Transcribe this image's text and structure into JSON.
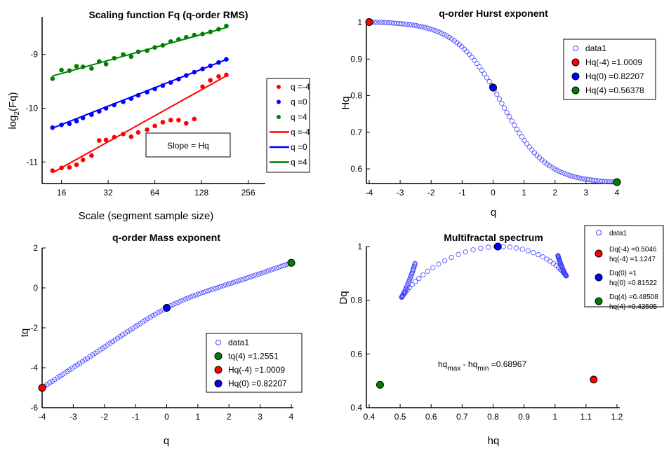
{
  "chart_data": [
    {
      "type": "scatter",
      "title": "Scaling function Fq (q-order RMS)",
      "xlabel": "Scale (segment sample size)",
      "ylabel_main": "log",
      "ylabel_sub": "2",
      "ylabel_tail": "(Fq)",
      "xscale": "log2",
      "xlim": [
        12,
        330
      ],
      "ylim": [
        -11.4,
        -8.3
      ],
      "xticks": [
        16,
        32,
        64,
        128,
        256
      ],
      "xtick_labels": [
        "16",
        "32",
        "64",
        "128",
        "256"
      ],
      "yticks": [
        -11,
        -10,
        -9
      ],
      "ytick_labels": [
        "-11",
        "-10",
        "-9"
      ],
      "annotation": "Slope = Hq",
      "legend_position": "right",
      "colors": {
        "red": "#ff0000",
        "blue": "#0000ff",
        "green": "#008000"
      },
      "x": [
        14,
        16,
        18,
        20,
        22,
        25,
        28,
        31,
        35,
        40,
        45,
        50,
        57,
        64,
        72,
        81,
        91,
        102,
        115,
        130,
        146,
        165,
        185
      ],
      "series": [
        {
          "name": "q =-4",
          "color": "#ff0000",
          "y": [
            -11.16,
            -11.11,
            -11.1,
            -11.05,
            -10.96,
            -10.88,
            -10.6,
            -10.59,
            -10.54,
            -10.48,
            -10.53,
            -10.45,
            -10.4,
            -10.33,
            -10.26,
            -10.22,
            -10.22,
            -10.28,
            -10.2,
            -9.6,
            -9.48,
            -9.41,
            -9.38
          ]
        },
        {
          "name": "q =0",
          "color": "#0000ff",
          "y": [
            -10.36,
            -10.31,
            -10.29,
            -10.24,
            -10.18,
            -10.12,
            -10.06,
            -10.0,
            -9.94,
            -9.88,
            -9.82,
            -9.76,
            -9.7,
            -9.64,
            -9.58,
            -9.52,
            -9.46,
            -9.39,
            -9.33,
            -9.27,
            -9.21,
            -9.15,
            -9.09
          ]
        },
        {
          "name": "q =4",
          "color": "#008000",
          "y": [
            -9.45,
            -9.29,
            -9.3,
            -9.22,
            -9.23,
            -9.26,
            -9.13,
            -9.18,
            -9.07,
            -9.0,
            -9.04,
            -8.95,
            -8.93,
            -8.87,
            -8.83,
            -8.76,
            -8.72,
            -8.68,
            -8.64,
            -8.62,
            -8.58,
            -8.53,
            -8.47
          ]
        }
      ],
      "fit_lines": [
        {
          "name": "q =-4",
          "color": "#ff0000",
          "x": [
            14,
            190
          ],
          "y": [
            -11.2,
            -9.38
          ]
        },
        {
          "name": "q =0",
          "color": "#0000ff",
          "x": [
            14,
            190
          ],
          "y": [
            -10.37,
            -9.08
          ]
        },
        {
          "name": "q =4",
          "color": "#008000",
          "x": [
            14,
            190
          ],
          "y": [
            -9.4,
            -8.49
          ]
        }
      ]
    },
    {
      "type": "scatter",
      "title": "q-order Hurst exponent",
      "xlabel": "q",
      "ylabel": "Hq",
      "xlim": [
        -4,
        4
      ],
      "ylim": [
        0.56,
        1.0
      ],
      "xticks": [
        -4,
        -3,
        -2,
        -1,
        0,
        1,
        2,
        3,
        4
      ],
      "xtick_labels": [
        "-4",
        "-3",
        "-2",
        "-1",
        "0",
        "1",
        "2",
        "3",
        "4"
      ],
      "yticks": [
        0.6,
        0.7,
        0.8,
        0.9,
        1.0
      ],
      "ytick_labels": [
        "0.6",
        "0.7",
        "0.8",
        "0.9",
        "1"
      ],
      "legend_position": "top-right",
      "series": [
        {
          "name": "data1",
          "style": "open-circle",
          "color": "#4040ff",
          "q_range": [
            -4,
            4
          ],
          "n": 100,
          "model": {
            "h_min": 0.565,
            "h_max": 1.0009,
            "center": 0.2,
            "width": 0.75,
            "slope_lin": 0.0
          }
        },
        {
          "name": "Hq(-4) =1.0009",
          "color": "#ff0000",
          "x": [
            -4
          ],
          "y": [
            1.0009
          ]
        },
        {
          "name": "Hq(0) =0.82207",
          "color": "#0000ff",
          "x": [
            0
          ],
          "y": [
            0.82207
          ]
        },
        {
          "name": "Hq(4) =0.56378",
          "color": "#008000",
          "x": [
            4
          ],
          "y": [
            0.56378
          ]
        }
      ]
    },
    {
      "type": "scatter",
      "title": "q-order Mass exponent",
      "xlabel": "q",
      "ylabel": "tq",
      "xlim": [
        -4,
        4
      ],
      "ylim": [
        -6,
        2
      ],
      "xticks": [
        -4,
        -3,
        -2,
        -1,
        0,
        1,
        2,
        3,
        4
      ],
      "xtick_labels": [
        "-4",
        "-3",
        "-2",
        "-1",
        "0",
        "1",
        "2",
        "3",
        "4"
      ],
      "yticks": [
        -6,
        -4,
        -2,
        0,
        2
      ],
      "ytick_labels": [
        "-6",
        "-4",
        "-2",
        "0",
        "2"
      ],
      "legend_position": "bottom-right",
      "series": [
        {
          "name": "data1",
          "style": "open-circle",
          "color": "#4040ff",
          "q_range": [
            -4,
            4
          ],
          "n": 100
        },
        {
          "name": "tq(4) =1.2551",
          "color": "#008000",
          "x": [
            4
          ],
          "y": [
            1.2551
          ]
        },
        {
          "name": "Hq(-4) =1.0009",
          "color": "#ff0000",
          "x": [
            -4
          ],
          "y": [
            -5.0036
          ]
        },
        {
          "name": "Hq(0) =0.82207",
          "color": "#0000ff",
          "x": [
            0
          ],
          "y": [
            -1.0
          ]
        }
      ]
    },
    {
      "type": "scatter",
      "title": "Multifractal spectrum",
      "xlabel": "hq",
      "ylabel": "Dq",
      "xlim": [
        0.4,
        1.2
      ],
      "ylim": [
        0.4,
        1.0
      ],
      "xticks": [
        0.4,
        0.5,
        0.6,
        0.7,
        0.8,
        0.9,
        1.0,
        1.1,
        1.2
      ],
      "xtick_labels": [
        "0.4",
        "0.5",
        "0.6",
        "0.7",
        "0.8",
        "0.9",
        "1",
        "1.1",
        "1.2"
      ],
      "yticks": [
        0.4,
        0.6,
        0.8,
        1.0
      ],
      "ytick_labels": [
        "0.4",
        "0.6",
        "0.8",
        "1"
      ],
      "annotation": {
        "main1": "hq",
        "sub1": "max",
        "mid": " - hq",
        "sub2": "min",
        "tail": " =0.68967"
      },
      "legend_position": "top-right",
      "series": [
        {
          "name": "data1",
          "style": "open-circle",
          "color": "#4040ff",
          "n": 100
        },
        {
          "name": "Dq(-4) =0.5046",
          "name2": "hq(-4) =1.1247",
          "color": "#ff0000",
          "x": [
            1.1247
          ],
          "y": [
            0.5046
          ]
        },
        {
          "name": "Dq(0) =1",
          "name2": "hq(0) =0.81522",
          "color": "#0000ff",
          "x": [
            0.81522
          ],
          "y": [
            1.0
          ]
        },
        {
          "name": "Dq(4) =0.48508",
          "name2": "hq(4) =0.43505",
          "color": "#008000",
          "x": [
            0.43505
          ],
          "y": [
            0.48508
          ]
        }
      ]
    }
  ]
}
